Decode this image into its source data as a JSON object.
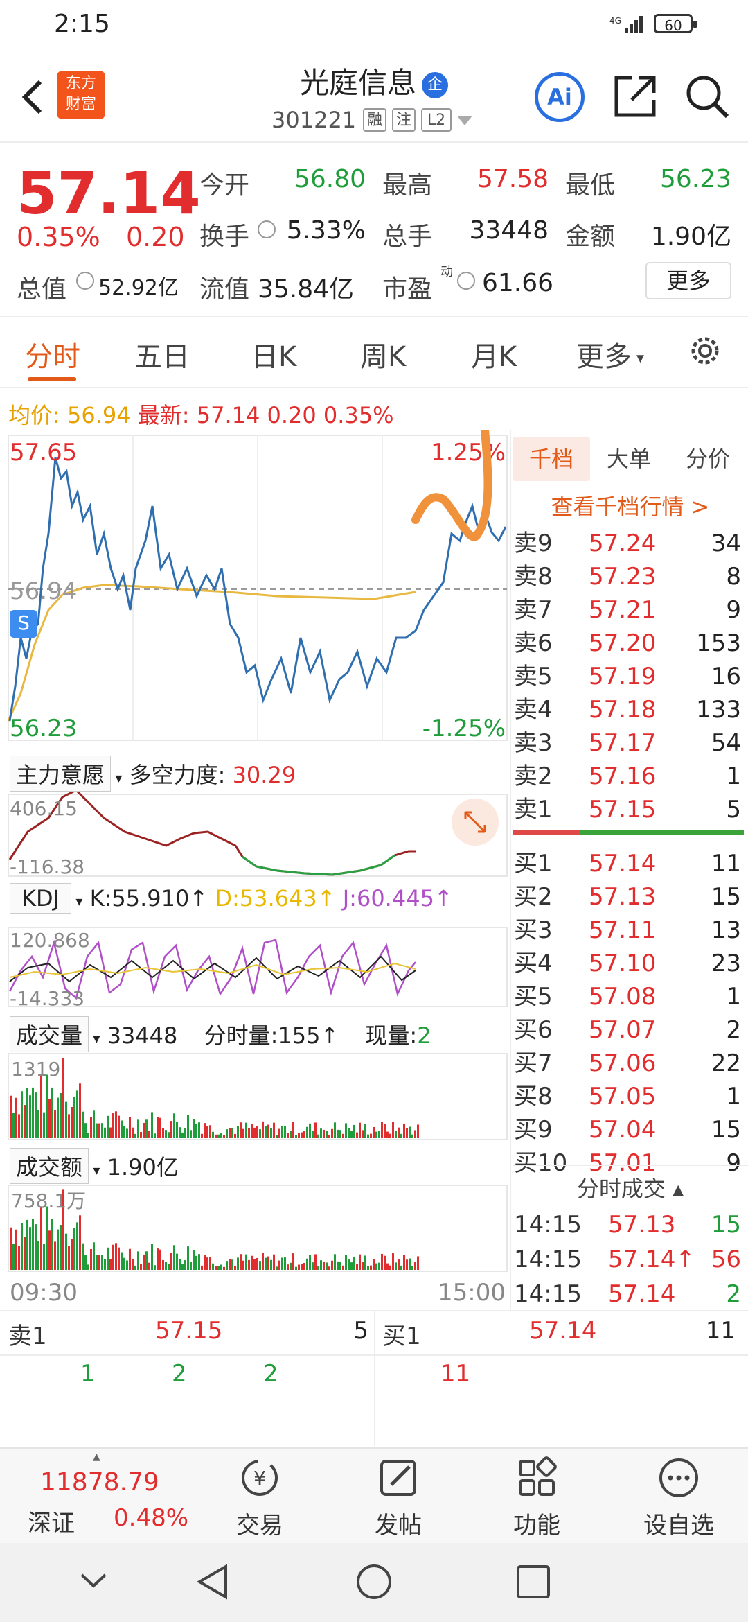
{
  "status_bar": {
    "time": "2:15",
    "network": "4G",
    "battery": "60"
  },
  "header": {
    "logo_text_line1": "东方",
    "logo_text_line2": "财富",
    "stock_name": "光庭信息",
    "badge": "企",
    "stock_code": "301221",
    "tags": [
      "融",
      "注",
      "L2"
    ],
    "ai_label": "Ai"
  },
  "quote": {
    "price": "57.14",
    "change_pct": "0.35%",
    "change": "0.20",
    "fields": {
      "open_label": "今开",
      "open": "56.80",
      "high_label": "最高",
      "high": "57.58",
      "low_label": "最低",
      "low": "56.23",
      "turnover_label": "换手",
      "turnover": "5.33%",
      "volume_label": "总手",
      "volume": "33448",
      "amount_label": "金额",
      "amount": "1.90亿",
      "mktcap_label": "总值",
      "mktcap": "52.92亿",
      "float_label": "流值",
      "float": "35.84亿",
      "pe_label": "市盈",
      "pe_sup": "动",
      "pe": "61.66"
    },
    "more_label": "更多"
  },
  "tabs": [
    "分时",
    "五日",
    "日K",
    "周K",
    "月K",
    "更多"
  ],
  "avg_row": {
    "avg_label": "均价:",
    "avg": "56.94",
    "latest_label": "最新:",
    "latest": "57.14",
    "change": "0.20",
    "pct": "0.35%"
  },
  "intraday": {
    "top_price": "57.65",
    "mid_price": "56.94",
    "bottom_price": "56.23",
    "top_pct": "1.25%",
    "bottom_pct": "-1.25%",
    "s_badge": "S",
    "time_start": "09:30",
    "time_end": "15:00"
  },
  "main_force": {
    "label": "主力意愿",
    "metric_label": "多空力度:",
    "metric": "30.29",
    "max": "406.15",
    "min": "-116.38"
  },
  "kdj": {
    "label": "KDJ",
    "k": "K:55.910↑",
    "d": "D:53.643↑",
    "j": "J:60.445↑",
    "max": "120.868",
    "min": "-14.333"
  },
  "volume": {
    "label": "成交量",
    "total": "33448",
    "tick_label": "分时量:",
    "tick": "155↑",
    "now_label": "现量:",
    "now": "2",
    "max": "1319"
  },
  "amount_chart": {
    "label": "成交额",
    "total": "1.90亿",
    "max": "758.1万"
  },
  "order_book": {
    "tabs": [
      "千档",
      "大单",
      "分价"
    ],
    "link": "查看千档行情 >",
    "asks": [
      {
        "label": "卖9",
        "price": "57.24",
        "vol": "34"
      },
      {
        "label": "卖8",
        "price": "57.23",
        "vol": "8"
      },
      {
        "label": "卖7",
        "price": "57.21",
        "vol": "9"
      },
      {
        "label": "卖6",
        "price": "57.20",
        "vol": "153"
      },
      {
        "label": "卖5",
        "price": "57.19",
        "vol": "16"
      },
      {
        "label": "卖4",
        "price": "57.18",
        "vol": "133"
      },
      {
        "label": "卖3",
        "price": "57.17",
        "vol": "54"
      },
      {
        "label": "卖2",
        "price": "57.16",
        "vol": "1"
      },
      {
        "label": "卖1",
        "price": "57.15",
        "vol": "5"
      }
    ],
    "bids": [
      {
        "label": "买1",
        "price": "57.14",
        "vol": "11"
      },
      {
        "label": "买2",
        "price": "57.13",
        "vol": "15"
      },
      {
        "label": "买3",
        "price": "57.11",
        "vol": "13"
      },
      {
        "label": "买4",
        "price": "57.10",
        "vol": "23"
      },
      {
        "label": "买5",
        "price": "57.08",
        "vol": "1"
      },
      {
        "label": "买6",
        "price": "57.07",
        "vol": "2"
      },
      {
        "label": "买7",
        "price": "57.06",
        "vol": "22"
      },
      {
        "label": "买8",
        "price": "57.05",
        "vol": "1"
      },
      {
        "label": "买9",
        "price": "57.04",
        "vol": "15"
      },
      {
        "label": "买10",
        "price": "57.01",
        "vol": "9"
      }
    ],
    "trades_title": "分时成交",
    "trades": [
      {
        "time": "14:15",
        "price": "57.13",
        "vol": "15",
        "color": "green"
      },
      {
        "time": "14:15",
        "price": "57.14↑",
        "vol": "56",
        "color": "red"
      },
      {
        "time": "14:15",
        "price": "57.14",
        "vol": "2",
        "color": "green"
      }
    ]
  },
  "bottom_quote": {
    "ask_label": "卖1",
    "ask_price": "57.15",
    "ask_vol": "5",
    "bid_label": "买1",
    "bid_price": "57.14",
    "bid_vol": "11",
    "ask_details": [
      "1",
      "2",
      "2"
    ],
    "bid_details": [
      "11"
    ]
  },
  "navbar": {
    "index_value": "11878.79",
    "index_name": "深证",
    "index_pct": "0.48%",
    "items": [
      "交易",
      "发帖",
      "功能",
      "设自选"
    ]
  },
  "colors": {
    "up": "#e12d2d",
    "down": "#1f9d3a",
    "accent": "#e25a18",
    "price_line": "#2f6fb0",
    "avg_line": "#e8b840"
  }
}
